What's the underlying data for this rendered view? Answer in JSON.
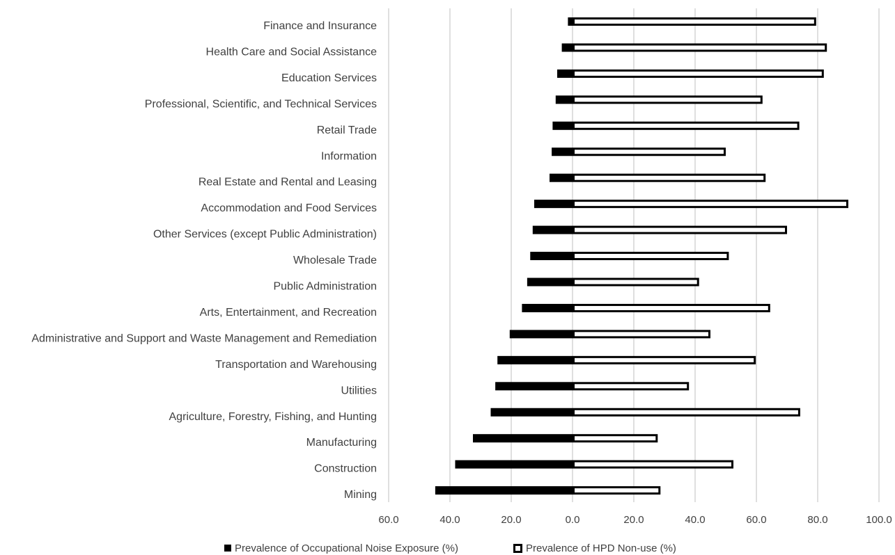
{
  "chart_data": {
    "type": "bar",
    "orientation": "horizontal",
    "grid": true,
    "legend_position": "bottom",
    "xlim": [
      -60,
      100
    ],
    "x_ticks": [
      "60.0",
      "40.0",
      "20.0",
      "0.0",
      "20.0",
      "40.0",
      "60.0",
      "80.0",
      "100.0"
    ],
    "categories": [
      "Finance and Insurance",
      "Health Care and Social Assistance",
      "Education Services",
      "Professional, Scientific, and Technical Services",
      "Retail Trade",
      "Information",
      "Real Estate and Rental and Leasing",
      "Accommodation and Food Services",
      "Other Services (except Public Administration)",
      "Wholesale Trade",
      "Public Administration",
      "Arts, Entertainment, and Recreation",
      "Administrative and Support and Waste Management and Remediation",
      "Transportation and Warehousing",
      "Utilities",
      "Agriculture, Forestry, Fishing, and Hunting",
      "Manufacturing",
      "Construction",
      "Mining"
    ],
    "series": [
      {
        "name": "Prevalence of Occupational Noise Exposure (%)",
        "color": "#000000",
        "style": "filled",
        "direction": "left",
        "values": [
          1.5,
          3.5,
          5.0,
          5.5,
          6.5,
          6.8,
          7.5,
          12.5,
          13.0,
          13.8,
          14.8,
          16.5,
          20.5,
          24.5,
          25.2,
          26.7,
          32.5,
          38.3,
          44.8
        ]
      },
      {
        "name": "Prevalence of HPD Non-use (%)",
        "color": "#000000",
        "style": "outline",
        "direction": "right",
        "values": [
          79.5,
          83.0,
          82.0,
          62.0,
          74.0,
          50.0,
          63.0,
          90.0,
          70.0,
          51.0,
          41.3,
          64.5,
          45.0,
          59.8,
          38.0,
          74.3,
          27.8,
          52.5,
          28.7
        ]
      }
    ]
  }
}
